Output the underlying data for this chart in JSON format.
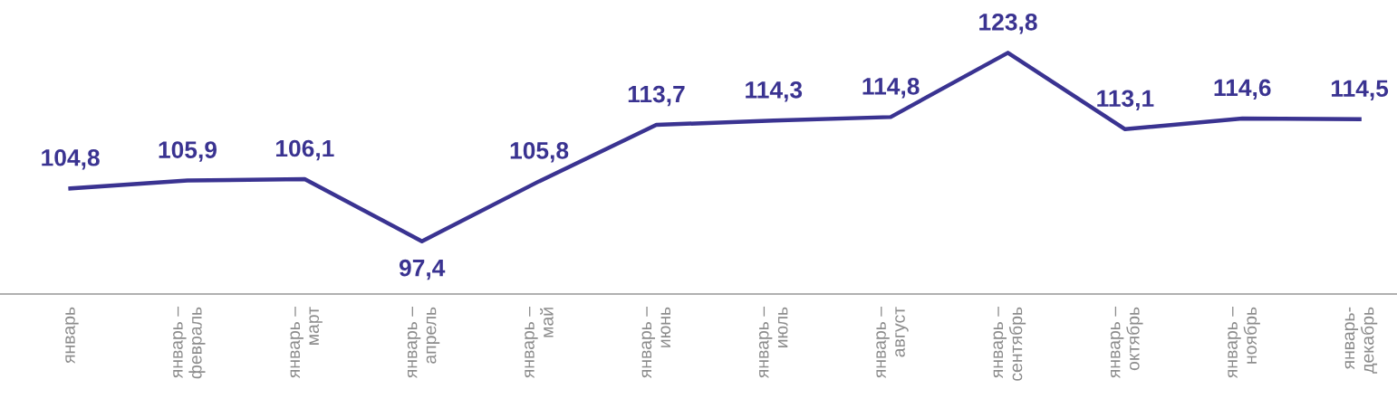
{
  "chart_data": {
    "type": "line",
    "categories": [
      "январь",
      "январь –\nфевраль",
      "январь –\nмарт",
      "январь –\nапрель",
      "январь –\nмай",
      "январь –\nиюнь",
      "январь –\nиюль",
      "январь –\nавгуст",
      "январь –\nсентябрь",
      "январь –\nоктябрь",
      "январь –\nноябрь",
      "январь-\nдекабрь"
    ],
    "series": [
      {
        "color": "#3a3391",
        "values": [
          104.8,
          105.9,
          106.1,
          97.4,
          105.8,
          113.7,
          114.3,
          114.8,
          123.8,
          113.1,
          114.6,
          114.5
        ],
        "value_labels": [
          "104,8",
          "105,9",
          "106,1",
          "97,4",
          "105,8",
          "113,7",
          "114,3",
          "114,8",
          "123,8",
          "113,1",
          "114,6",
          "114,5"
        ]
      }
    ],
    "grid": false,
    "marker": "none",
    "line_style": "solid"
  }
}
